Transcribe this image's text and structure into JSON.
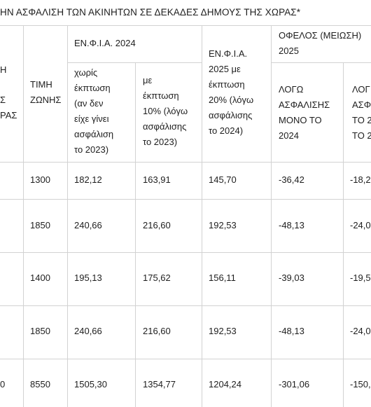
{
  "table": {
    "title": "ΗΝ ΑΣΦΑΛΙΣΗ ΤΩΝ ΑΚΙΝΗΤΩΝ ΣΕ ΔΕΚΑΔΕΣ ΔΗΜΟΥΣ ΤΗΣ ΧΩΡΑΣ*",
    "headers": {
      "col0_fragments": [
        "Η",
        "Σ",
        "ΡΑΣ"
      ],
      "zone_price": [
        "ΤΙΜΗ",
        "ΖΩΝΗΣ"
      ],
      "enfia_2024": "ΕΝ.Φ.Ι.Α. 2024",
      "without_discount": [
        "χωρίς",
        "έκπτωση",
        "(αν δεν",
        "είχε γίνει",
        "ασφάλιση",
        "το 2023)"
      ],
      "with_discount": [
        "με",
        "έκπτωση",
        "10% (λόγω",
        "ασφάλισης",
        "το 2023)"
      ],
      "enfia_2025": [
        "ΕΝ.Φ.Ι.Α.",
        "2025 με",
        "έκπτωση",
        "20% (λόγω",
        "ασφάλισης",
        "το 2024)"
      ],
      "benefit": [
        "ΟΦΕΛΟΣ (ΜΕΙΩΣΗ)",
        "2025"
      ],
      "due_insurance_2024": [
        "ΛΟΓΩ",
        "ΑΣΦΑΛΙΣΗΣ",
        "ΜΟΝΟ ΤΟ",
        "2024"
      ],
      "due_insurance_cut": [
        "ΛΟΓ",
        "ΑΣΦ",
        "ΤΟ 2",
        "ΤΟ 2"
      ]
    },
    "rows": [
      {
        "c0": "",
        "zone": "1300",
        "no_disc": "182,12",
        "disc10": "163,91",
        "enfia2025": "145,70",
        "ben1": "-36,42",
        "ben2": "-18,2"
      },
      {
        "c0": "",
        "zone": "1850",
        "no_disc": "240,66",
        "disc10": "216,60",
        "enfia2025": "192,53",
        "ben1": "-48,13",
        "ben2": "-24,0"
      },
      {
        "c0": "",
        "zone": "1400",
        "no_disc": "195,13",
        "disc10": "175,62",
        "enfia2025": "156,11",
        "ben1": "-39,03",
        "ben2": "-19,5"
      },
      {
        "c0": "",
        "zone": "1850",
        "no_disc": "240,66",
        "disc10": "216,60",
        "enfia2025": "192,53",
        "ben1": "-48,13",
        "ben2": "-24,0"
      },
      {
        "c0": "0",
        "zone": "8550",
        "no_disc": "1505,30",
        "disc10": "1354,77",
        "enfia2025": "1204,24",
        "ben1": "-301,06",
        "ben2": "-150,"
      }
    ]
  }
}
